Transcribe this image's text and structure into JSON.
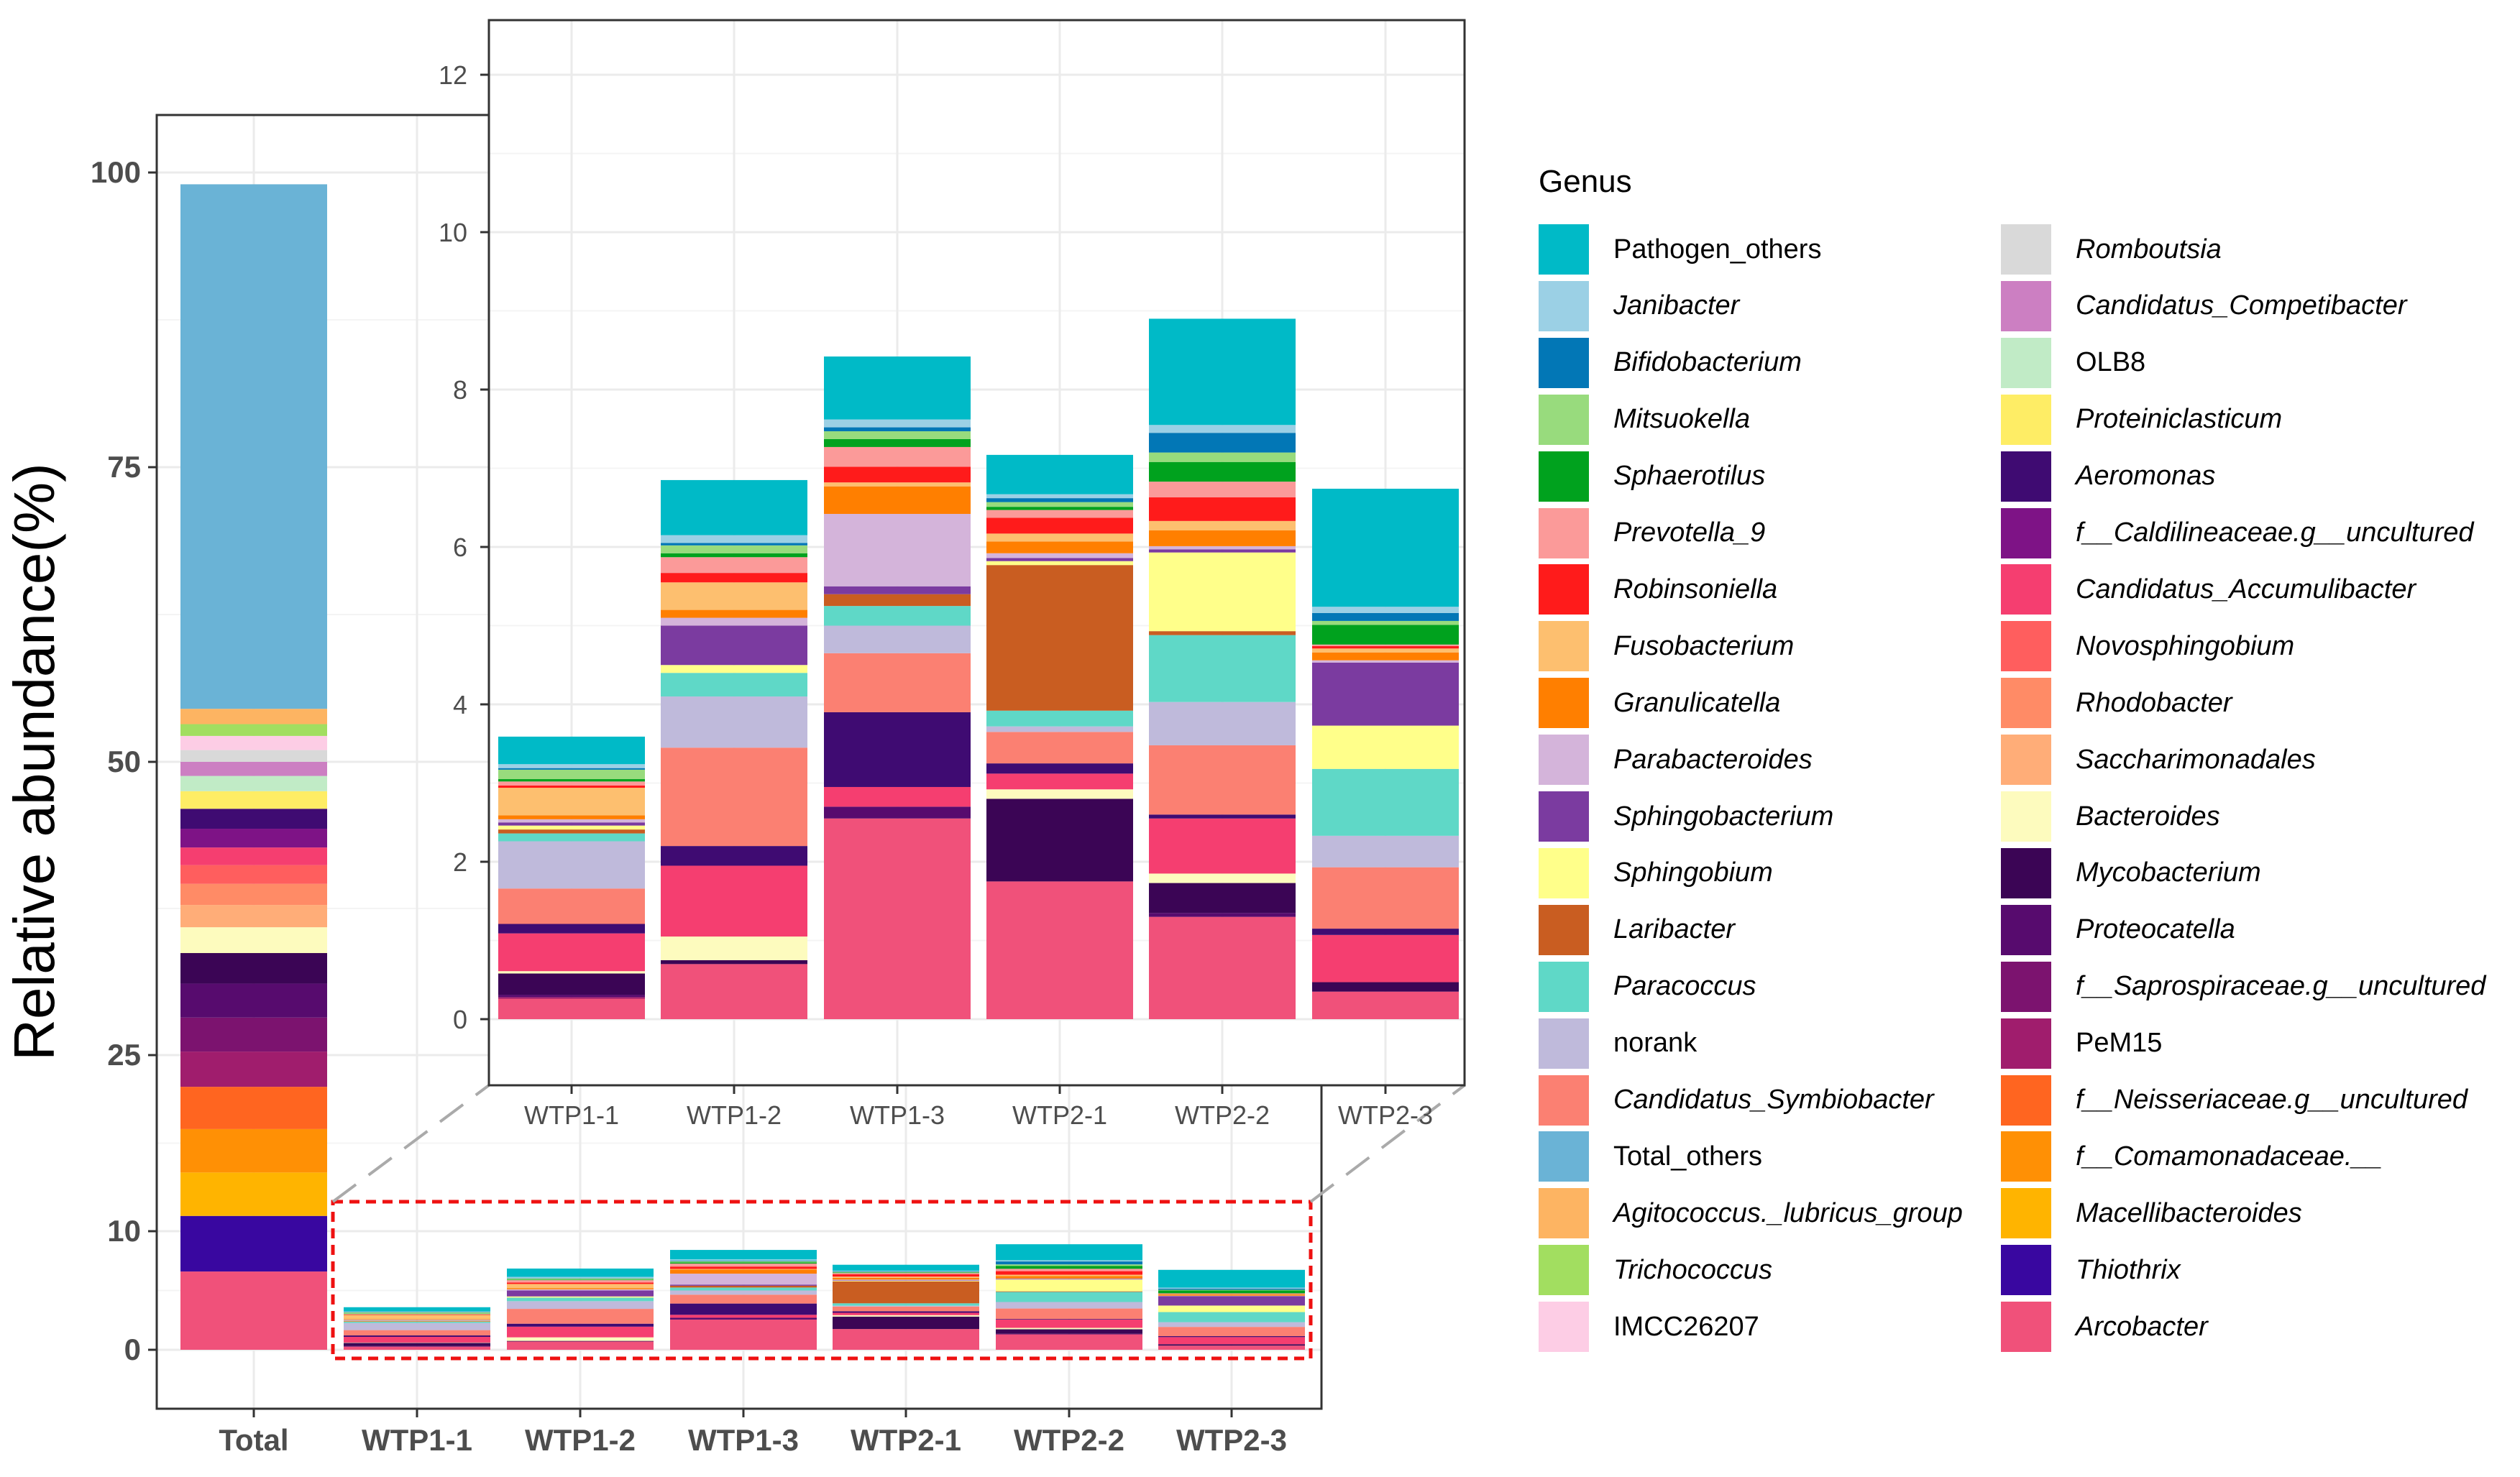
{
  "chart_data": {
    "type": "stacked-bar",
    "ylabel": "Relative abundance(%)",
    "legend_title": "Genus",
    "main": {
      "categories": [
        "Total",
        "WTP1-1",
        "WTP1-2",
        "WTP1-3",
        "WTP2-1",
        "WTP2-2",
        "WTP2-3"
      ],
      "y_ticks": [
        {
          "label": "0",
          "value": 0
        },
        {
          "label": "10",
          "value": 10
        },
        {
          "label": "25",
          "value": 25
        },
        {
          "label": "50",
          "value": 50
        },
        {
          "label": "75",
          "value": 75
        },
        {
          "label": "100",
          "value": 100
        }
      ],
      "total_stack": [
        {
          "genus": "Arcobacter",
          "value": 6.6
        },
        {
          "genus": "Thiothrix",
          "value": 4.7
        },
        {
          "genus": "Macellibacteroides",
          "value": 3.7
        },
        {
          "genus": "f__Comamonadaceae.__",
          "value": 3.7
        },
        {
          "genus": "f__Neisseriaceae.g__uncultured",
          "value": 3.6
        },
        {
          "genus": "PeM15",
          "value": 3.0
        },
        {
          "genus": "f__Saprospiraceae.g__uncultured",
          "value": 2.9
        },
        {
          "genus": "Proteocatella",
          "value": 2.9
        },
        {
          "genus": "Mycobacterium",
          "value": 2.6
        },
        {
          "genus": "Bacteroides",
          "value": 2.2
        },
        {
          "genus": "Saccharimonadales",
          "value": 1.9
        },
        {
          "genus": "Rhodobacter",
          "value": 1.8
        },
        {
          "genus": "Novosphingobium",
          "value": 1.6
        },
        {
          "genus": "Candidatus_Accumulibacter",
          "value": 1.5
        },
        {
          "genus": "f__Caldilineaceae.g__uncultured",
          "value": 1.6
        },
        {
          "genus": "Aeromonas",
          "value": 1.7
        },
        {
          "genus": "Proteiniclasticum",
          "value": 1.5
        },
        {
          "genus": "OLB8",
          "value": 1.3
        },
        {
          "genus": "Candidatus_Competibacter",
          "value": 1.2
        },
        {
          "genus": "Romboutsia",
          "value": 1.0
        },
        {
          "genus": "IMCC26207",
          "value": 1.2
        },
        {
          "genus": "Trichococcus",
          "value": 1.0
        },
        {
          "genus": "Agitococcus._lubricus_group",
          "value": 1.3
        },
        {
          "genus": "Total_others",
          "value": 44.5
        }
      ]
    },
    "inset": {
      "categories": [
        "WTP1-1",
        "WTP1-2",
        "WTP1-3",
        "WTP2-1",
        "WTP2-2",
        "WTP2-3"
      ],
      "y_ticks": [
        "0",
        "2",
        "4",
        "6",
        "8",
        "10",
        "12"
      ],
      "ylim": [
        -0.3,
        12.4
      ],
      "series_order": [
        "Arcobacter",
        "Thiothrix",
        "Macellibacteroides",
        "f__Comamonadaceae.__",
        "f__Neisseriaceae.g__uncultured",
        "PeM15",
        "f__Saprospiraceae.g__uncultured",
        "Proteocatella",
        "Mycobacterium",
        "Bacteroides",
        "Saccharimonadales",
        "Rhodobacter",
        "Novosphingobium",
        "Candidatus_Accumulibacter",
        "f__Caldilineaceae.g__uncultured",
        "Aeromonas",
        "Proteiniclasticum",
        "OLB8",
        "Candidatus_Competibacter",
        "Romboutsia",
        "IMCC26207",
        "Trichococcus",
        "Agitococcus._lubricus_group",
        "Candidatus_Symbiobacter",
        "norank",
        "Paracoccus",
        "Laribacter",
        "Sphingobium",
        "Sphingobacterium",
        "Parabacteroides",
        "Granulicatella",
        "Fusobacterium",
        "Robinsoniella",
        "Prevotella_9",
        "Sphaerotilus",
        "Mitsuokella",
        "Bifidobacterium",
        "Janibacter",
        "Pathogen_others"
      ],
      "series": [
        {
          "name": "Arcobacter",
          "values": [
            0.26,
            0.7,
            2.55,
            1.75,
            1.3,
            0.35
          ]
        },
        {
          "name": "Thiothrix",
          "values": [
            0,
            0,
            0,
            0,
            0,
            0
          ]
        },
        {
          "name": "Macellibacteroides",
          "values": [
            0,
            0,
            0,
            0,
            0,
            0
          ]
        },
        {
          "name": "f__Comamonadaceae.__",
          "values": [
            0,
            0,
            0,
            0,
            0,
            0
          ]
        },
        {
          "name": "f__Neisseriaceae.g__uncultured",
          "values": [
            0,
            0,
            0,
            0,
            0,
            0
          ]
        },
        {
          "name": "PeM15",
          "values": [
            0.02,
            0,
            0,
            0,
            0,
            0
          ]
        },
        {
          "name": "f__Saprospiraceae.g__uncultured",
          "values": [
            0,
            0,
            0,
            0,
            0,
            0
          ]
        },
        {
          "name": "Proteocatella",
          "values": [
            0.03,
            0,
            0.15,
            0,
            0.05,
            0
          ]
        },
        {
          "name": "Mycobacterium",
          "values": [
            0.27,
            0.05,
            0,
            1.05,
            0.38,
            0.12
          ]
        },
        {
          "name": "Bacteroides",
          "values": [
            0.03,
            0.3,
            0,
            0.12,
            0.12,
            0
          ]
        },
        {
          "name": "Saccharimonadales",
          "values": [
            0,
            0,
            0,
            0,
            0,
            0
          ]
        },
        {
          "name": "Rhodobacter",
          "values": [
            0,
            0,
            0,
            0,
            0,
            0
          ]
        },
        {
          "name": "Novosphingobium",
          "values": [
            0,
            0,
            0,
            0,
            0,
            0
          ]
        },
        {
          "name": "Candidatus_Accumulibacter",
          "values": [
            0.48,
            0.9,
            0.25,
            0.2,
            0.7,
            0.6
          ]
        },
        {
          "name": "f__Caldilineaceae.g__uncultured",
          "values": [
            0,
            0,
            0,
            0,
            0,
            0
          ]
        },
        {
          "name": "Aeromonas",
          "values": [
            0.12,
            0.25,
            0.95,
            0.13,
            0.05,
            0.08
          ]
        },
        {
          "name": "Proteiniclasticum",
          "values": [
            0,
            0,
            0,
            0,
            0,
            0
          ]
        },
        {
          "name": "OLB8",
          "values": [
            0,
            0,
            0,
            0,
            0,
            0
          ]
        },
        {
          "name": "Candidatus_Competibacter",
          "values": [
            0,
            0,
            0,
            0,
            0,
            0
          ]
        },
        {
          "name": "Romboutsia",
          "values": [
            0,
            0,
            0,
            0,
            0,
            0
          ]
        },
        {
          "name": "IMCC26207",
          "values": [
            0,
            0,
            0,
            0,
            0,
            0
          ]
        },
        {
          "name": "Trichococcus",
          "values": [
            0,
            0,
            0,
            0,
            0,
            0
          ]
        },
        {
          "name": "Agitococcus._lubricus_group",
          "values": [
            0,
            0,
            0,
            0,
            0,
            0
          ]
        },
        {
          "name": "Candidatus_Symbiobacter",
          "values": [
            0.45,
            1.25,
            0.75,
            0.4,
            0.88,
            0.78
          ]
        },
        {
          "name": "norank",
          "values": [
            0.6,
            0.65,
            0.35,
            0.07,
            0.55,
            0.4
          ]
        },
        {
          "name": "Paracoccus",
          "values": [
            0.1,
            0.3,
            0.25,
            0.2,
            0.85,
            0.85
          ]
        },
        {
          "name": "Laribacter",
          "values": [
            0.05,
            0,
            0.15,
            1.85,
            0.05,
            0
          ]
        },
        {
          "name": "Sphingobium",
          "values": [
            0.05,
            0.1,
            0,
            0.05,
            1.0,
            0.55
          ]
        },
        {
          "name": "Sphingobacterium",
          "values": [
            0.04,
            0.5,
            0.1,
            0.04,
            0.04,
            0.8
          ]
        },
        {
          "name": "Parabacteroides",
          "values": [
            0.04,
            0.1,
            0.92,
            0.06,
            0.04,
            0.03
          ]
        },
        {
          "name": "Granulicatella",
          "values": [
            0.05,
            0.1,
            0.35,
            0.15,
            0.2,
            0.1
          ]
        },
        {
          "name": "Fusobacterium",
          "values": [
            0.35,
            0.35,
            0.05,
            0.1,
            0.12,
            0.05
          ]
        },
        {
          "name": "Robinsoniella",
          "values": [
            0.03,
            0.12,
            0.2,
            0.2,
            0.3,
            0.03
          ]
        },
        {
          "name": "Prevotella_9",
          "values": [
            0.05,
            0.2,
            0.25,
            0.1,
            0.2,
            0.02
          ]
        },
        {
          "name": "Sphaerotilus",
          "values": [
            0.03,
            0.05,
            0.1,
            0.04,
            0.25,
            0.25
          ]
        },
        {
          "name": "Mitsuokella",
          "values": [
            0.12,
            0.1,
            0.1,
            0.06,
            0.12,
            0.05
          ]
        },
        {
          "name": "Bifidobacterium",
          "values": [
            0.02,
            0.03,
            0.05,
            0.05,
            0.25,
            0.1
          ]
        },
        {
          "name": "Janibacter",
          "values": [
            0.05,
            0.1,
            0.1,
            0.05,
            0.1,
            0.08
          ]
        },
        {
          "name": "Pathogen_others",
          "values": [
            0.35,
            0.7,
            0.8,
            0.5,
            1.35,
            1.5
          ]
        }
      ]
    },
    "legend": [
      {
        "name": "Pathogen_others",
        "color": "#00BAC7",
        "italic": false
      },
      {
        "name": "Janibacter",
        "color": "#9BD0E5",
        "italic": true
      },
      {
        "name": "Bifidobacterium",
        "color": "#0277B6",
        "italic": true
      },
      {
        "name": "Mitsuokella",
        "color": "#98DB7D",
        "italic": true
      },
      {
        "name": "Sphaerotilus",
        "color": "#00A21E",
        "italic": true
      },
      {
        "name": "Prevotella_9",
        "color": "#FB9A99",
        "italic": true
      },
      {
        "name": "Robinsoniella",
        "color": "#FF1B1B",
        "italic": true
      },
      {
        "name": "Fusobacterium",
        "color": "#FDBF6F",
        "italic": true
      },
      {
        "name": "Granulicatella",
        "color": "#FF7F00",
        "italic": true
      },
      {
        "name": "Parabacteroides",
        "color": "#D4B4DA",
        "italic": true
      },
      {
        "name": "Sphingobacterium",
        "color": "#7B3BA0",
        "italic": true
      },
      {
        "name": "Sphingobium",
        "color": "#FFFF8A",
        "italic": true
      },
      {
        "name": "Laribacter",
        "color": "#C95D21",
        "italic": true
      },
      {
        "name": "Paracoccus",
        "color": "#5FD8C7",
        "italic": true
      },
      {
        "name": "norank",
        "color": "#BFBADB",
        "italic": false
      },
      {
        "name": "Candidatus_Symbiobacter",
        "color": "#FB8072",
        "italic": true
      },
      {
        "name": "Total_others",
        "color": "#6AB3D6",
        "italic": false
      },
      {
        "name": "Agitococcus._lubricus_group",
        "color": "#FDB462",
        "italic": true
      },
      {
        "name": "Trichococcus",
        "color": "#A2DE60",
        "italic": true
      },
      {
        "name": "IMCC26207",
        "color": "#FDCDE5",
        "italic": false
      },
      {
        "name": "Romboutsia",
        "color": "#D9D9D9",
        "italic": true
      },
      {
        "name": "Candidatus_Competibacter",
        "color": "#CC7FC2",
        "italic": true
      },
      {
        "name": "OLB8",
        "color": "#C1EBC6",
        "italic": false
      },
      {
        "name": "Proteiniclasticum",
        "color": "#FEED65",
        "italic": true
      },
      {
        "name": "Aeromonas",
        "color": "#3F0B72",
        "italic": true
      },
      {
        "name": "f__Caldilineaceae.g__uncultured",
        "color": "#7E1386",
        "italic": true
      },
      {
        "name": "Candidatus_Accumulibacter",
        "color": "#F53E70",
        "italic": true
      },
      {
        "name": "Novosphingobium",
        "color": "#FF5E5E",
        "italic": true
      },
      {
        "name": "Rhodobacter",
        "color": "#FF8B66",
        "italic": true
      },
      {
        "name": "Saccharimonadales",
        "color": "#FFAD78",
        "italic": true
      },
      {
        "name": "Bacteroides",
        "color": "#FDFBBE",
        "italic": true
      },
      {
        "name": "Mycobacterium",
        "color": "#3B0555",
        "italic": true
      },
      {
        "name": "Proteocatella",
        "color": "#570B6E",
        "italic": true
      },
      {
        "name": "f__Saprospiraceae.g__uncultured",
        "color": "#7C136F",
        "italic": true
      },
      {
        "name": "PeM15",
        "color": "#A01D6D",
        "italic": false
      },
      {
        "name": "f__Neisseriaceae.g__uncultured",
        "color": "#FF6520",
        "italic": true
      },
      {
        "name": "f__Comamonadaceae.__",
        "color": "#FF9005",
        "italic": true
      },
      {
        "name": "Macellibacteroides",
        "color": "#FFB400",
        "italic": true
      },
      {
        "name": "Thiothrix",
        "color": "#3907A0",
        "italic": true
      },
      {
        "name": "Arcobacter",
        "color": "#F0517A",
        "italic": true
      }
    ]
  }
}
